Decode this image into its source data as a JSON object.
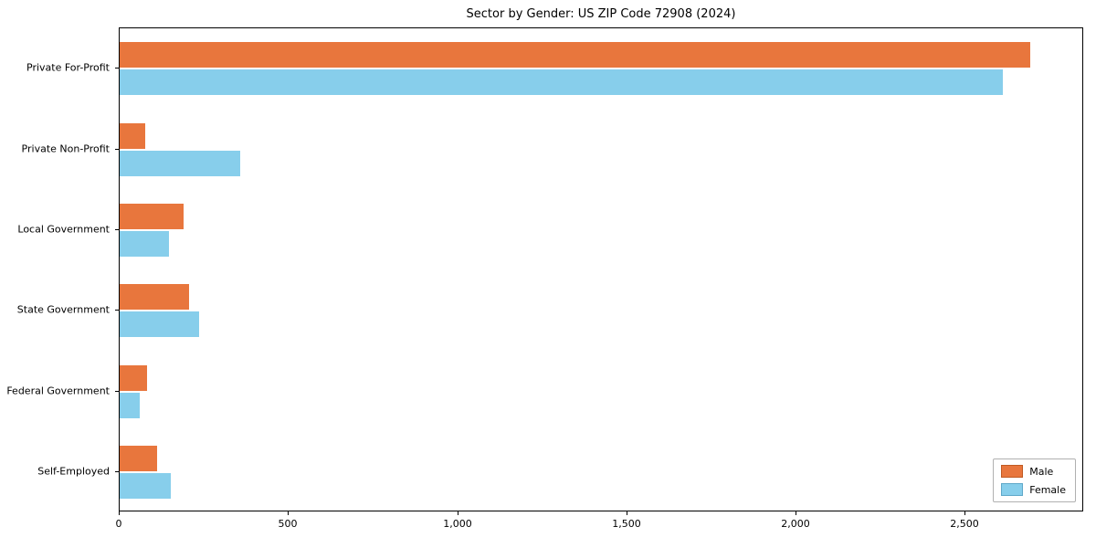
{
  "chart_data": {
    "type": "bar",
    "orientation": "horizontal",
    "title": "Sector by Gender: US ZIP Code 72908 (2024)",
    "xlabel": "",
    "ylabel": "",
    "xlim": [
      0,
      2850
    ],
    "grid": false,
    "legend_position": "lower right",
    "categories": [
      "Private For-Profit",
      "Private Non-Profit",
      "Local Government",
      "State Government",
      "Federal Government",
      "Self-Employed"
    ],
    "series": [
      {
        "name": "Male",
        "color": "#e8763d",
        "edge_color": "#c05a22",
        "values": [
          2690,
          75,
          190,
          205,
          80,
          110
        ]
      },
      {
        "name": "Female",
        "color": "#87ceeb",
        "edge_color": "#5fa8c9",
        "values": [
          2610,
          355,
          145,
          235,
          60,
          150
        ]
      }
    ],
    "xticks": [
      {
        "value": 0,
        "label": "0"
      },
      {
        "value": 500,
        "label": "500"
      },
      {
        "value": 1000,
        "label": "1,000"
      },
      {
        "value": 1500,
        "label": "1,500"
      },
      {
        "value": 2000,
        "label": "2,000"
      },
      {
        "value": 2500,
        "label": "2,500"
      }
    ]
  }
}
